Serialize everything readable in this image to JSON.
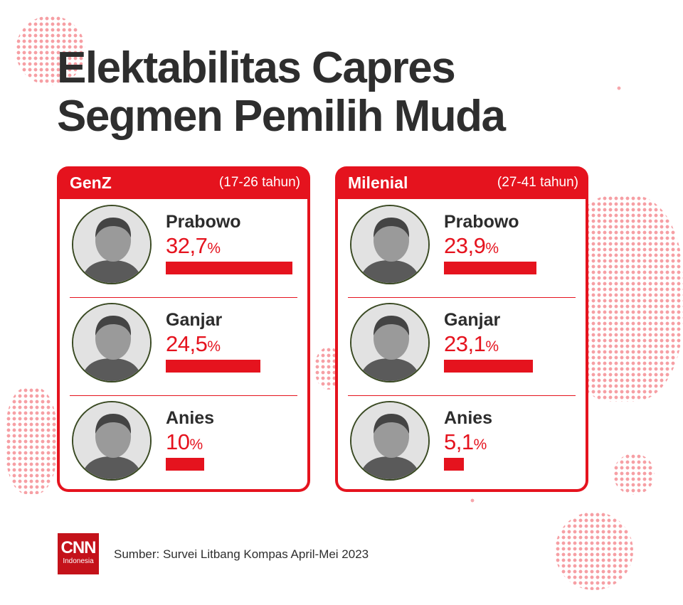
{
  "title_lines": [
    "Elektabilitas Capres",
    "Segmen Pemilih Muda"
  ],
  "colors": {
    "accent": "#e5131e",
    "text": "#2e2e2e",
    "avatar_ring": "#3a4a23"
  },
  "chart_data": {
    "type": "bar",
    "title": "Elektabilitas Capres Segmen Pemilih Muda",
    "unit": "%",
    "categories": [
      "Prabowo",
      "Ganjar",
      "Anies"
    ],
    "xmax": 35,
    "series": [
      {
        "name": "GenZ",
        "subtitle": "(17-26 tahun)",
        "values": [
          32.7,
          24.5,
          10
        ],
        "labels": [
          "32,7",
          "24,5",
          "10"
        ]
      },
      {
        "name": "Milenial",
        "subtitle": "(27-41 tahun)",
        "values": [
          23.9,
          23.1,
          5.1
        ],
        "labels": [
          "23,9",
          "23,1",
          "5,1"
        ]
      }
    ]
  },
  "avatars": [
    "prabowo-photo",
    "ganjar-photo",
    "anies-photo"
  ],
  "footer": {
    "logo_main": "CNN",
    "logo_sub": "Indonesia",
    "source": "Sumber: Survei Litbang Kompas April-Mei 2023"
  }
}
